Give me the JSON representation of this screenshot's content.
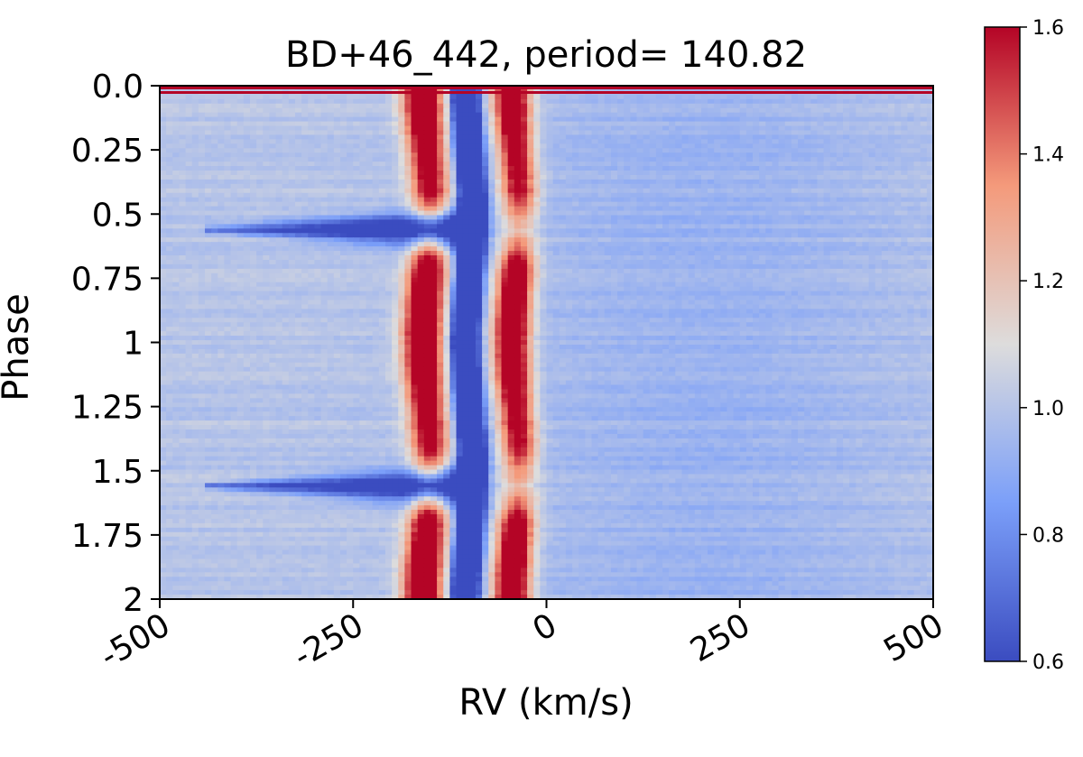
{
  "chart_data": {
    "type": "heatmap",
    "title": "BD+46_442, period= 140.82",
    "xlabel": "RV (km/s)",
    "ylabel": "Phase",
    "xlim": [
      -500,
      500
    ],
    "ylim": [
      2.0,
      0.0
    ],
    "x_tick_values": [
      -500,
      -250,
      0,
      250,
      500
    ],
    "x_tick_labels": [
      "-500",
      "-250",
      "0",
      "250",
      "500"
    ],
    "y_tick_values": [
      0.0,
      0.25,
      0.5,
      0.75,
      1.0,
      1.25,
      1.5,
      1.75,
      2.0
    ],
    "y_tick_labels": [
      "0.0",
      "0.25",
      "0.5",
      "0.75",
      "1",
      "1.25",
      "1.5",
      "1.75",
      "2"
    ],
    "colormap": "coolwarm",
    "color_range": [
      0.6,
      1.6
    ],
    "colorbar_ticks": [
      "0.6",
      "0.8",
      "1.0",
      "1.2",
      "1.4",
      "1.6"
    ],
    "features": {
      "continuum_level": 1.0,
      "absorption_core": {
        "rv_center_at_phase_0": -105,
        "rv_center_at_phase_0.75": -95,
        "depth_value": 0.6
      },
      "emission_blue_peak": {
        "rv_center": -160,
        "peak_value": 1.6
      },
      "emission_red_peak": {
        "rv_center": -45,
        "peak_value": 1.6
      },
      "absorption_wing_events": [
        {
          "phase": 0.56,
          "rv_extent": [
            -430,
            -100
          ]
        },
        {
          "phase": 1.56,
          "rv_extent": [
            -430,
            -100
          ]
        }
      ]
    }
  }
}
